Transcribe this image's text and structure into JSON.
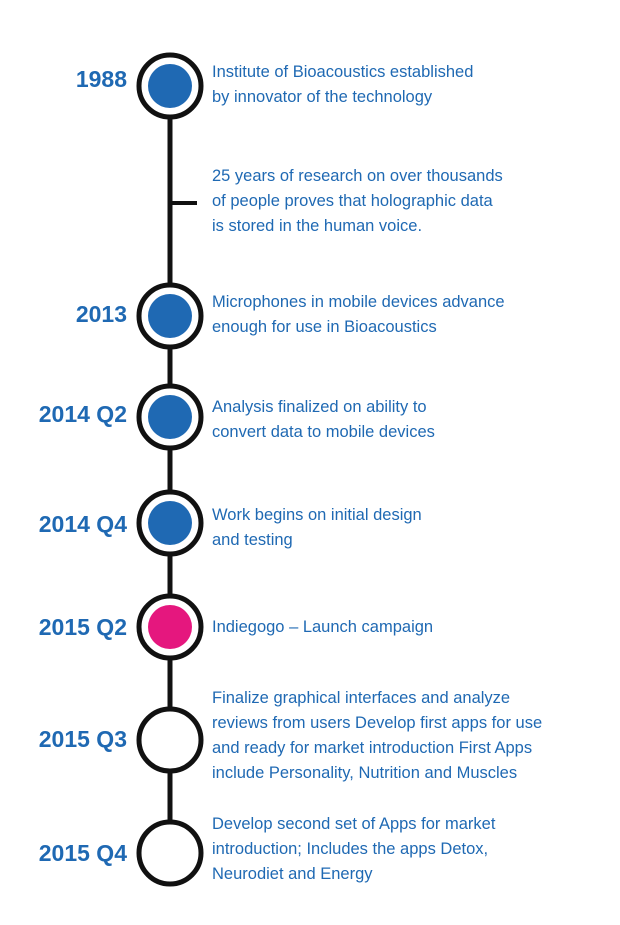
{
  "colors": {
    "line": "#111111",
    "text": "#1f69b3",
    "filled": "#1f69b3",
    "highlight": "#e5177e",
    "empty": "#ffffff"
  },
  "events": [
    {
      "year": "1988",
      "node": "filled",
      "lines": [
        "Institute of Bioacoustics established",
        "by innovator of the technology"
      ]
    },
    {
      "year": "",
      "node": "tick",
      "lines": [
        "25 years of research on over thousands",
        "of people proves that holographic data",
        "is stored in the human voice."
      ]
    },
    {
      "year": "2013",
      "node": "filled",
      "lines": [
        "Microphones in mobile devices advance",
        "enough for use in Bioacoustics"
      ]
    },
    {
      "year": "2014 Q2",
      "node": "filled",
      "lines": [
        "Analysis finalized on ability to",
        "convert data to mobile devices"
      ]
    },
    {
      "year": "2014 Q4",
      "node": "filled",
      "lines": [
        "Work begins on  initial design",
        "and testing"
      ]
    },
    {
      "year": "2015 Q2",
      "node": "highlight",
      "lines": [
        "Indiegogo – Launch campaign"
      ]
    },
    {
      "year": "2015 Q3",
      "node": "empty",
      "lines": [
        "Finalize graphical interfaces and analyze",
        "reviews from users Develop first apps for use",
        "and ready for market introduction First Apps",
        "include Personality, Nutrition and Muscles"
      ]
    },
    {
      "year": "2015 Q4",
      "node": "empty",
      "lines": [
        "Develop second set of Apps for market",
        "introduction; Includes the apps Detox,",
        "Neurodiet and Energy"
      ]
    }
  ]
}
